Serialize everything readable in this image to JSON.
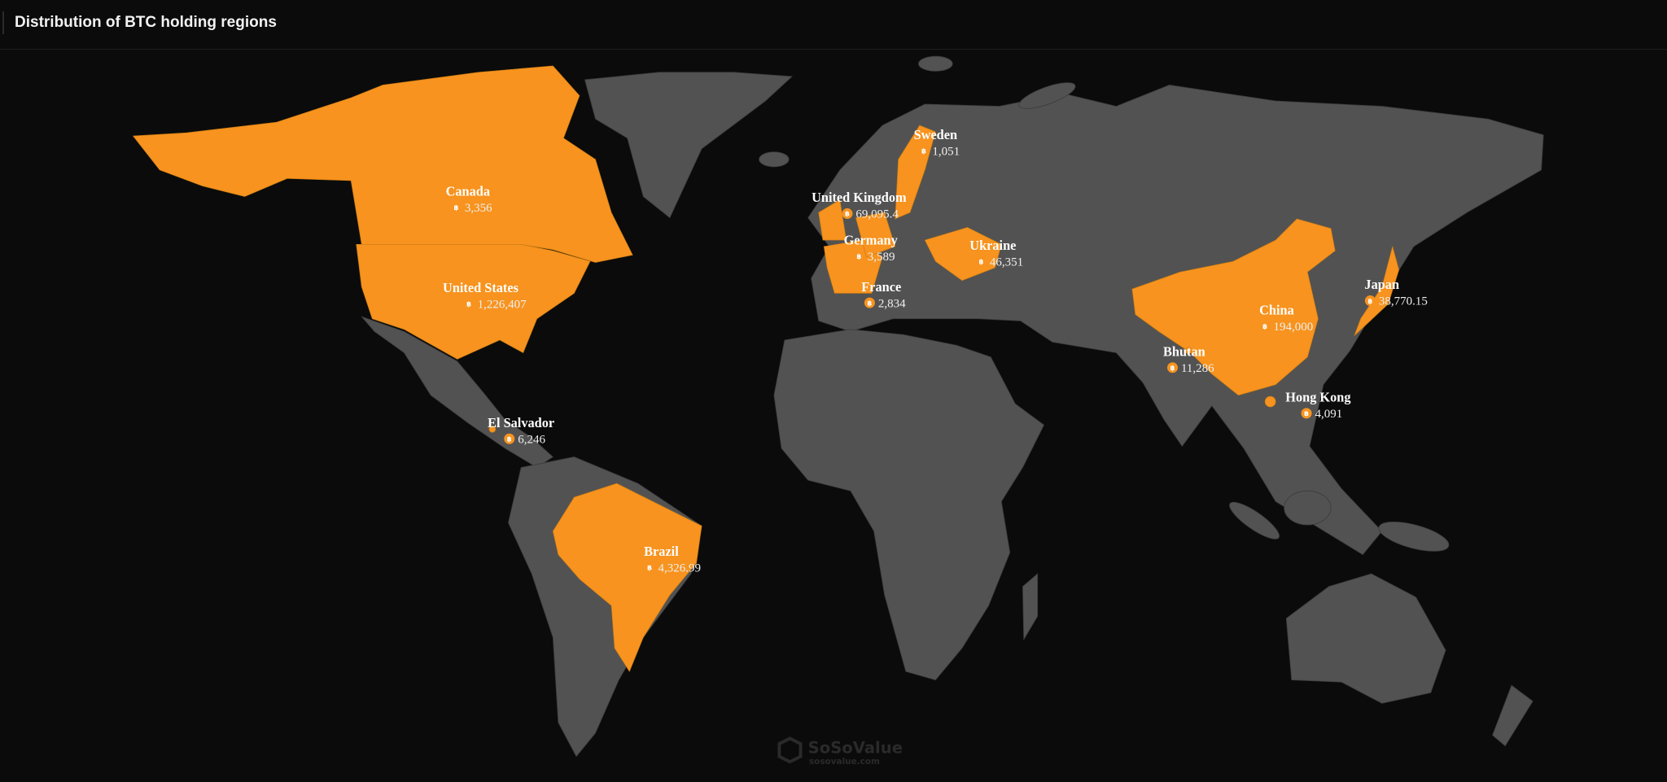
{
  "header": {
    "title": "Distribution of BTC holding regions"
  },
  "colors": {
    "background": "#0b0b0b",
    "land": "#525252",
    "highlight": "#f7931e",
    "label": "#ffffff"
  },
  "currency_icon": "bitcoin-icon",
  "regions": [
    {
      "name": "Canada",
      "value": "3,356"
    },
    {
      "name": "United States",
      "value": "1,226,407"
    },
    {
      "name": "El Salvador",
      "value": "6,246"
    },
    {
      "name": "Brazil",
      "value": "4,326.99"
    },
    {
      "name": "Sweden",
      "value": "1,051"
    },
    {
      "name": "United Kingdom",
      "value": "69,095.4"
    },
    {
      "name": "Germany",
      "value": "3,589"
    },
    {
      "name": "Ukraine",
      "value": "46,351"
    },
    {
      "name": "France",
      "value": "2,834"
    },
    {
      "name": "China",
      "value": "194,000"
    },
    {
      "name": "Bhutan",
      "value": "11,286"
    },
    {
      "name": "Hong Kong",
      "value": "4,091"
    },
    {
      "name": "Japan",
      "value": "38,770.15"
    }
  ],
  "watermark": {
    "brand": "SoSoValue",
    "url": "sosovalue.com"
  }
}
